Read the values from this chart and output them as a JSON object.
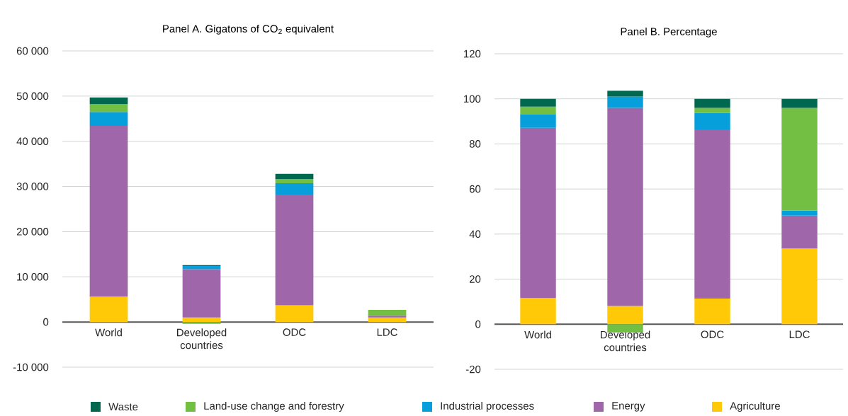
{
  "chart_data": [
    {
      "type": "bar",
      "stacked": true,
      "title": "Panel A. Gigatons of CO$_{2}$ equivalent",
      "categories": [
        "World",
        "Developed countries",
        "ODC",
        "LDC"
      ],
      "series": [
        {
          "name": "Agriculture",
          "color": "#ffc907",
          "values": [
            5600,
            1000,
            3700,
            1000
          ]
        },
        {
          "name": "Energy",
          "color": "#a066aa",
          "values": [
            37800,
            10700,
            24500,
            400
          ]
        },
        {
          "name": "Industrial processes",
          "color": "#069fdb",
          "values": [
            3100,
            700,
            2500,
            null
          ]
        },
        {
          "name": "Land-use change and forestry",
          "color": "#72bf44",
          "values": [
            1700,
            -400,
            900,
            1300
          ]
        },
        {
          "name": "Waste",
          "color": "#00684f",
          "values": [
            1500,
            200,
            1200,
            null
          ]
        }
      ],
      "ylim": [
        -10000,
        60000
      ],
      "yticks": [
        {
          "value": -10000,
          "label": "-10 000"
        },
        {
          "value": 0,
          "label": "0"
        },
        {
          "value": 10000,
          "label": "10 000"
        },
        {
          "value": 20000,
          "label": "20 000"
        },
        {
          "value": 30000,
          "label": "30 000"
        },
        {
          "value": 40000,
          "label": "40 000"
        },
        {
          "value": 50000,
          "label": "50 000"
        },
        {
          "value": 60000,
          "label": "60 000"
        }
      ],
      "grid": "y",
      "legend": "bottom"
    },
    {
      "type": "bar",
      "stacked": true,
      "title": "Panel B. Percentage",
      "categories": [
        "World",
        "Developed countries",
        "ODC",
        "LDC"
      ],
      "series": [
        {
          "color": "#ffc907",
          "values": [
            11.6,
            8.1,
            11.4,
            33.6
          ]
        },
        {
          "color": "#a066aa",
          "values": [
            75.5,
            87.9,
            75.0,
            14.6
          ]
        },
        {
          "color": "#069fdb",
          "values": [
            6.1,
            5.0,
            7.4,
            2.2
          ]
        },
        {
          "color": "#72bf44",
          "values": [
            3.3,
            -3.7,
            2.2,
            45.6
          ]
        },
        {
          "color": "#00684f",
          "values": [
            3.5,
            2.6,
            4.0,
            4.0
          ]
        }
      ],
      "ylim": [
        -20,
        120
      ],
      "yticks": [
        -20,
        0,
        20,
        40,
        60,
        80,
        100,
        120
      ],
      "grid": "y"
    }
  ]
}
